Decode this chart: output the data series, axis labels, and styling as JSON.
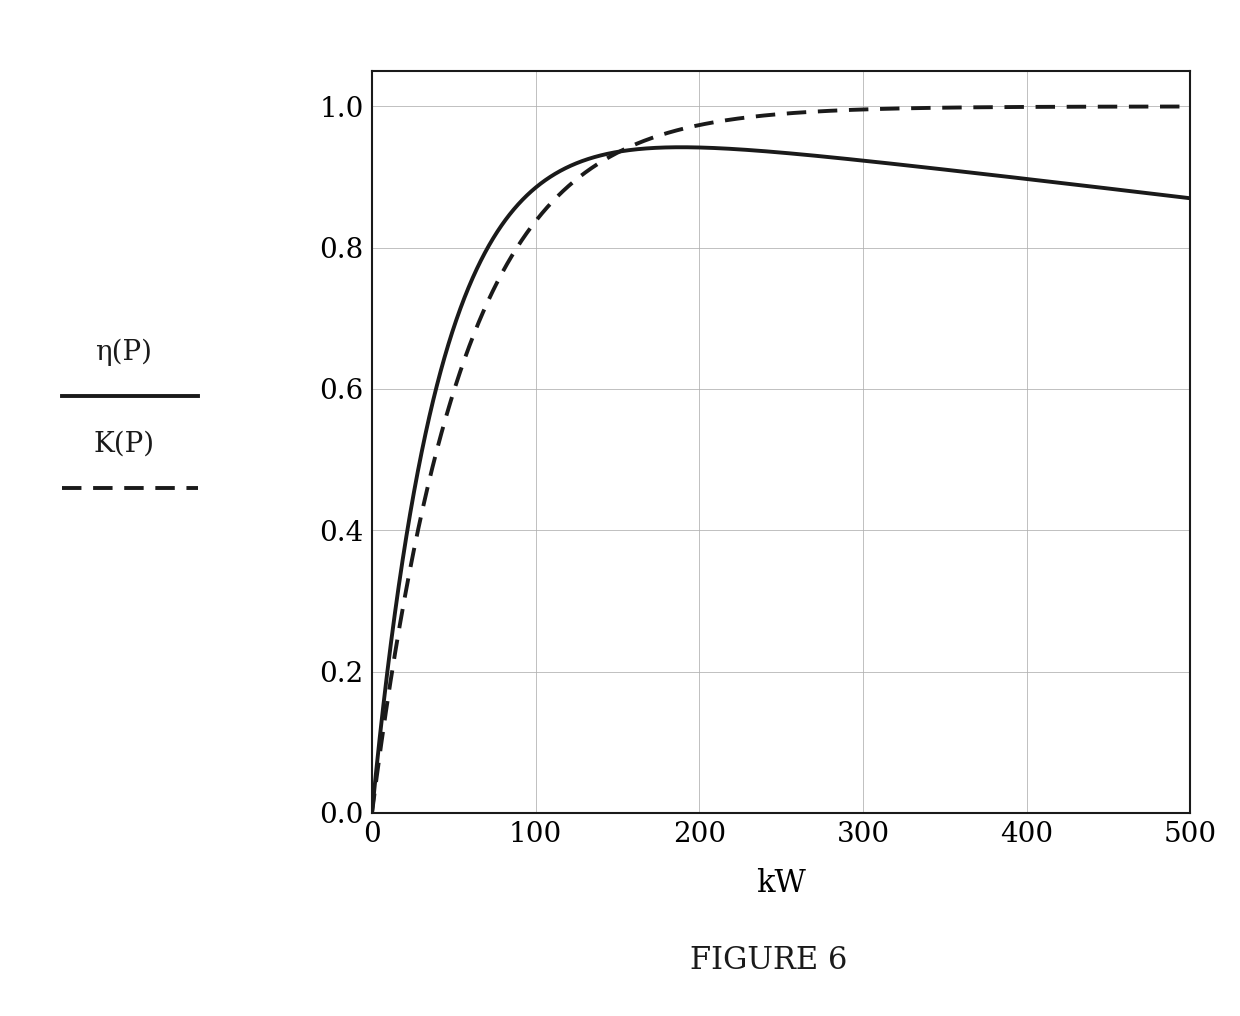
{
  "title": "FIGURE 6",
  "xlabel": "kW",
  "xlim": [
    0,
    500
  ],
  "ylim": [
    0,
    1.05
  ],
  "xticks": [
    0,
    100,
    200,
    300,
    400,
    500
  ],
  "yticks": [
    0,
    0.2,
    0.4,
    0.6,
    0.8,
    1.0
  ],
  "legend_eta": "η(P)",
  "legend_K": "K(P)",
  "background_color": "#ffffff",
  "line_color": "#1a1a1a",
  "grid_color": "#b0b0b0",
  "figure_size": [
    12.4,
    10.16
  ],
  "dpi": 100,
  "tau_K": 55.0,
  "tau_eta": 42.0,
  "a_eta": -0.00036875,
  "b_eta": -0.000125
}
